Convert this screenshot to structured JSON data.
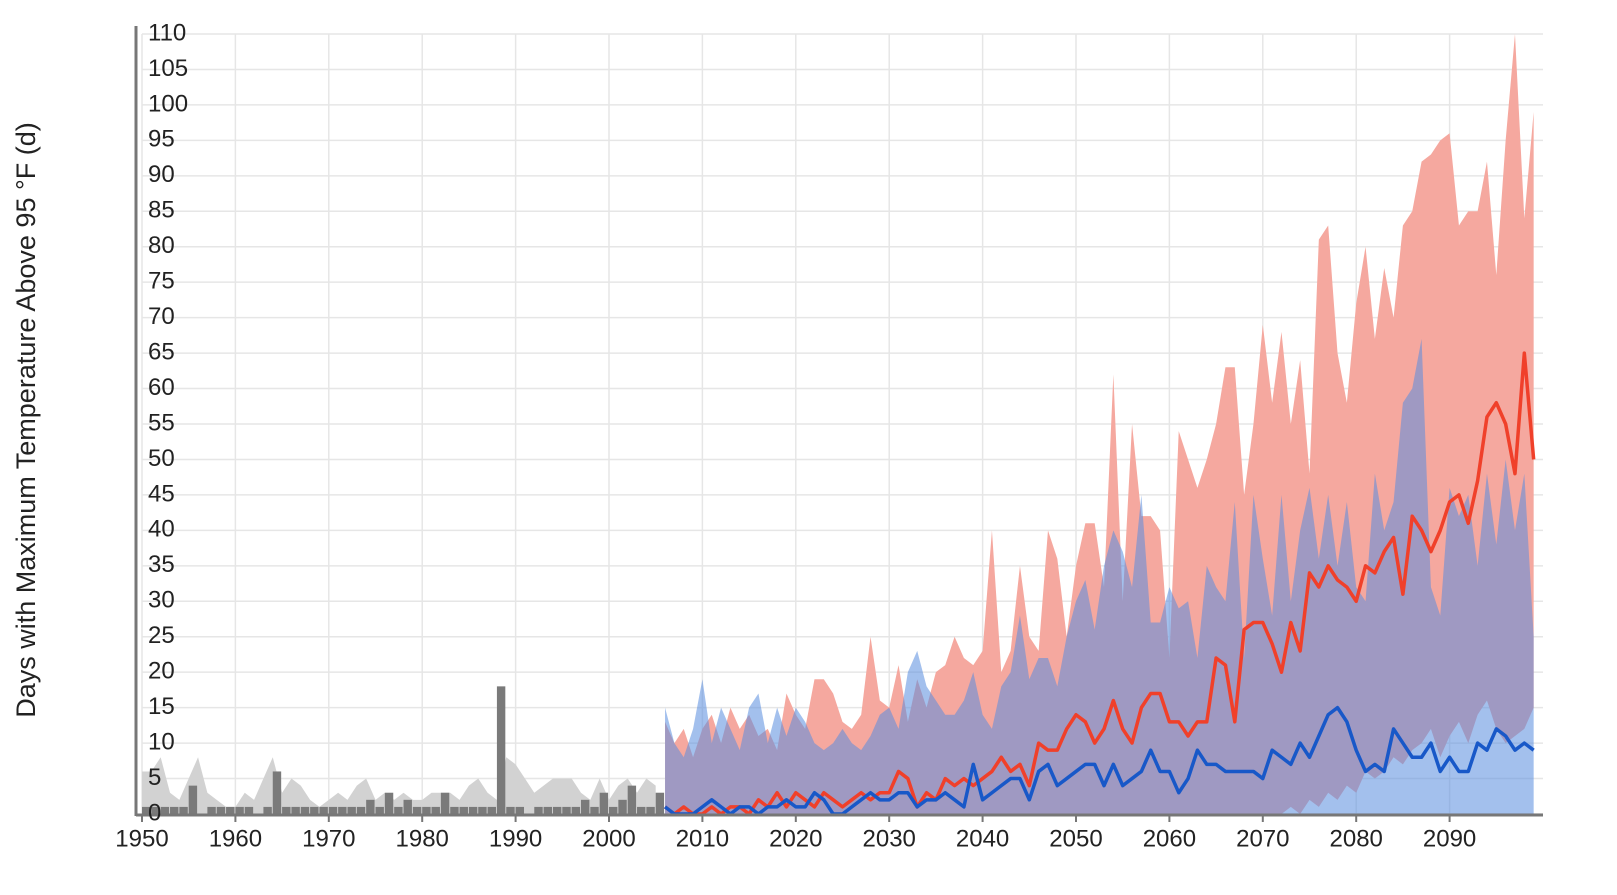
{
  "chart_data": {
    "type": "combo",
    "y_label": "Days with Maximum Temperature Above 95 °F (d)",
    "xlim": [
      1950,
      2100
    ],
    "ylim": [
      0,
      110
    ],
    "xticks": [
      1950,
      1960,
      1970,
      1980,
      1990,
      2000,
      2010,
      2020,
      2030,
      2040,
      2050,
      2060,
      2070,
      2080,
      2090
    ],
    "yticks": [
      0,
      5,
      10,
      15,
      20,
      25,
      30,
      35,
      40,
      45,
      50,
      55,
      60,
      65,
      70,
      75,
      80,
      85,
      90,
      95,
      100,
      105,
      110
    ],
    "grid": true,
    "series": [
      {
        "type": "area",
        "color": "#d2d2d2",
        "x": [
          1950,
          1951,
          1952,
          1953,
          1954,
          1955,
          1956,
          1957,
          1958,
          1959,
          1960,
          1961,
          1962,
          1963,
          1964,
          1965,
          1966,
          1967,
          1968,
          1969,
          1970,
          1971,
          1972,
          1973,
          1974,
          1975,
          1976,
          1977,
          1978,
          1979,
          1980,
          1981,
          1982,
          1983,
          1984,
          1985,
          1986,
          1987,
          1988,
          1989,
          1990,
          1991,
          1992,
          1993,
          1994,
          1995,
          1996,
          1997,
          1998,
          1999,
          2000,
          2001,
          2002,
          2003,
          2004,
          2005
        ],
        "values": [
          6,
          6,
          8,
          3,
          2,
          5,
          8,
          3,
          2,
          1,
          1,
          3,
          2,
          5,
          8,
          3,
          5,
          4,
          2,
          1,
          2,
          3,
          2,
          4,
          5,
          2,
          3,
          2,
          3,
          2,
          2,
          3,
          3,
          3,
          2,
          4,
          5,
          3,
          2,
          8,
          7,
          5,
          3,
          4,
          5,
          5,
          5,
          3,
          2,
          5,
          2,
          4,
          5,
          3,
          5,
          4
        ]
      },
      {
        "type": "bar",
        "color": "#7a7a7a",
        "x": [
          1950,
          1951,
          1952,
          1953,
          1954,
          1955,
          1956,
          1957,
          1958,
          1959,
          1960,
          1961,
          1962,
          1963,
          1964,
          1965,
          1966,
          1967,
          1968,
          1969,
          1970,
          1971,
          1972,
          1973,
          1974,
          1975,
          1976,
          1977,
          1978,
          1979,
          1980,
          1981,
          1982,
          1983,
          1984,
          1985,
          1986,
          1987,
          1988,
          1989,
          1990,
          1991,
          1992,
          1993,
          1994,
          1995,
          1996,
          1997,
          1998,
          1999,
          2000,
          2001,
          2002,
          2003,
          2004,
          2005
        ],
        "values": [
          1,
          1,
          1,
          1,
          1,
          4,
          0,
          1,
          1,
          1,
          1,
          1,
          0,
          1,
          6,
          1,
          1,
          1,
          1,
          1,
          1,
          1,
          1,
          1,
          2,
          1,
          3,
          1,
          2,
          1,
          1,
          1,
          3,
          1,
          1,
          1,
          1,
          1,
          18,
          1,
          1,
          0,
          1,
          1,
          1,
          1,
          1,
          2,
          1,
          3,
          1,
          2,
          4,
          1,
          1,
          3
        ]
      },
      {
        "type": "range",
        "color": "#f5a89f",
        "x": [
          2006,
          2007,
          2008,
          2009,
          2010,
          2011,
          2012,
          2013,
          2014,
          2015,
          2016,
          2017,
          2018,
          2019,
          2020,
          2021,
          2022,
          2023,
          2024,
          2025,
          2026,
          2027,
          2028,
          2029,
          2030,
          2031,
          2032,
          2033,
          2034,
          2035,
          2036,
          2037,
          2038,
          2039,
          2040,
          2041,
          2042,
          2043,
          2044,
          2045,
          2046,
          2047,
          2048,
          2049,
          2050,
          2051,
          2052,
          2053,
          2054,
          2055,
          2056,
          2057,
          2058,
          2059,
          2060,
          2061,
          2062,
          2063,
          2064,
          2065,
          2066,
          2067,
          2068,
          2069,
          2070,
          2071,
          2072,
          2073,
          2074,
          2075,
          2076,
          2077,
          2078,
          2079,
          2080,
          2081,
          2082,
          2083,
          2084,
          2085,
          2086,
          2087,
          2088,
          2089,
          2090,
          2091,
          2092,
          2093,
          2094,
          2095,
          2096,
          2097,
          2098,
          2099
        ],
        "low": [
          0,
          0,
          0,
          0,
          0,
          0,
          0,
          0,
          0,
          0,
          0,
          0,
          0,
          0,
          0,
          0,
          0,
          0,
          0,
          0,
          0,
          0,
          0,
          0,
          0,
          0,
          0,
          0,
          0,
          0,
          0,
          0,
          0,
          0,
          0,
          0,
          0,
          0,
          0,
          0,
          0,
          0,
          0,
          0,
          0,
          0,
          0,
          0,
          0,
          0,
          0,
          0,
          0,
          0,
          0,
          0,
          0,
          0,
          0,
          0,
          0,
          0,
          0,
          0,
          0,
          0,
          0,
          1,
          0,
          2,
          1,
          3,
          2,
          4,
          3,
          6,
          5,
          6,
          8,
          7,
          9,
          10,
          12,
          8,
          11,
          13,
          10,
          14,
          16,
          12,
          10,
          11,
          12,
          15
        ],
        "high": [
          13,
          10,
          12,
          8,
          12,
          14,
          10,
          15,
          12,
          14,
          11,
          12,
          9,
          17,
          14,
          12,
          19,
          19,
          17,
          13,
          12,
          14,
          25,
          16,
          15,
          21,
          13,
          19,
          15,
          20,
          21,
          25,
          22,
          21,
          23,
          40,
          20,
          23,
          35,
          25,
          23,
          40,
          36,
          25,
          35,
          41,
          41,
          32,
          62,
          30,
          55,
          42,
          42,
          40,
          22,
          54,
          50,
          46,
          50,
          55,
          63,
          63,
          45,
          55,
          69,
          58,
          68,
          55,
          64,
          48,
          81,
          83,
          65,
          58,
          72,
          80,
          67,
          77,
          70,
          83,
          85,
          92,
          93,
          95,
          96,
          83,
          85,
          85,
          92,
          76,
          95,
          110,
          84,
          99
        ]
      },
      {
        "type": "area",
        "color": "rgba(88,140,222,0.55)",
        "x": [
          2006,
          2007,
          2008,
          2009,
          2010,
          2011,
          2012,
          2013,
          2014,
          2015,
          2016,
          2017,
          2018,
          2019,
          2020,
          2021,
          2022,
          2023,
          2024,
          2025,
          2026,
          2027,
          2028,
          2029,
          2030,
          2031,
          2032,
          2033,
          2034,
          2035,
          2036,
          2037,
          2038,
          2039,
          2040,
          2041,
          2042,
          2043,
          2044,
          2045,
          2046,
          2047,
          2048,
          2049,
          2050,
          2051,
          2052,
          2053,
          2054,
          2055,
          2056,
          2057,
          2058,
          2059,
          2060,
          2061,
          2062,
          2063,
          2064,
          2065,
          2066,
          2067,
          2068,
          2069,
          2070,
          2071,
          2072,
          2073,
          2074,
          2075,
          2076,
          2077,
          2078,
          2079,
          2080,
          2081,
          2082,
          2083,
          2084,
          2085,
          2086,
          2087,
          2088,
          2089,
          2090,
          2091,
          2092,
          2093,
          2094,
          2095,
          2096,
          2097,
          2098,
          2099
        ],
        "values": [
          15,
          10,
          8,
          12,
          19,
          10,
          15,
          12,
          9,
          15,
          17,
          10,
          15,
          11,
          15,
          13,
          10,
          9,
          10,
          12,
          10,
          9,
          11,
          14,
          15,
          12,
          20,
          23,
          18,
          16,
          14,
          14,
          16,
          20,
          14,
          12,
          18,
          20,
          28,
          19,
          22,
          22,
          18,
          25,
          30,
          33,
          26,
          35,
          40,
          37,
          32,
          45,
          27,
          27,
          32,
          29,
          30,
          22,
          35,
          32,
          30,
          44,
          22,
          45,
          36,
          28,
          45,
          30,
          40,
          46,
          36,
          45,
          35,
          44,
          32,
          30,
          48,
          40,
          44,
          58,
          60,
          67,
          32,
          28,
          46,
          42,
          45,
          35,
          48,
          38,
          50,
          40,
          48,
          25
        ]
      },
      {
        "type": "line",
        "color": "#f0402a",
        "x": [
          2006,
          2007,
          2008,
          2009,
          2010,
          2011,
          2012,
          2013,
          2014,
          2015,
          2016,
          2017,
          2018,
          2019,
          2020,
          2021,
          2022,
          2023,
          2024,
          2025,
          2026,
          2027,
          2028,
          2029,
          2030,
          2031,
          2032,
          2033,
          2034,
          2035,
          2036,
          2037,
          2038,
          2039,
          2040,
          2041,
          2042,
          2043,
          2044,
          2045,
          2046,
          2047,
          2048,
          2049,
          2050,
          2051,
          2052,
          2053,
          2054,
          2055,
          2056,
          2057,
          2058,
          2059,
          2060,
          2061,
          2062,
          2063,
          2064,
          2065,
          2066,
          2067,
          2068,
          2069,
          2070,
          2071,
          2072,
          2073,
          2074,
          2075,
          2076,
          2077,
          2078,
          2079,
          2080,
          2081,
          2082,
          2083,
          2084,
          2085,
          2086,
          2087,
          2088,
          2089,
          2090,
          2091,
          2092,
          2093,
          2094,
          2095,
          2096,
          2097,
          2098,
          2099
        ],
        "values": [
          1,
          0,
          1,
          0,
          0,
          1,
          0,
          1,
          1,
          0,
          2,
          1,
          3,
          1,
          3,
          2,
          1,
          3,
          2,
          1,
          2,
          3,
          2,
          3,
          3,
          6,
          5,
          1,
          3,
          2,
          5,
          4,
          5,
          4,
          5,
          6,
          8,
          6,
          7,
          4,
          10,
          9,
          9,
          12,
          14,
          13,
          10,
          12,
          16,
          12,
          10,
          15,
          17,
          17,
          13,
          13,
          11,
          13,
          13,
          22,
          21,
          13,
          26,
          27,
          27,
          24,
          20,
          27,
          23,
          34,
          32,
          35,
          33,
          32,
          30,
          35,
          34,
          37,
          39,
          31,
          42,
          40,
          37,
          40,
          44,
          45,
          41,
          47,
          56,
          58,
          55,
          48,
          65,
          50
        ]
      },
      {
        "type": "line",
        "color": "#1858c8",
        "x": [
          2006,
          2007,
          2008,
          2009,
          2010,
          2011,
          2012,
          2013,
          2014,
          2015,
          2016,
          2017,
          2018,
          2019,
          2020,
          2021,
          2022,
          2023,
          2024,
          2025,
          2026,
          2027,
          2028,
          2029,
          2030,
          2031,
          2032,
          2033,
          2034,
          2035,
          2036,
          2037,
          2038,
          2039,
          2040,
          2041,
          2042,
          2043,
          2044,
          2045,
          2046,
          2047,
          2048,
          2049,
          2050,
          2051,
          2052,
          2053,
          2054,
          2055,
          2056,
          2057,
          2058,
          2059,
          2060,
          2061,
          2062,
          2063,
          2064,
          2065,
          2066,
          2067,
          2068,
          2069,
          2070,
          2071,
          2072,
          2073,
          2074,
          2075,
          2076,
          2077,
          2078,
          2079,
          2080,
          2081,
          2082,
          2083,
          2084,
          2085,
          2086,
          2087,
          2088,
          2089,
          2090,
          2091,
          2092,
          2093,
          2094,
          2095,
          2096,
          2097,
          2098,
          2099
        ],
        "values": [
          1,
          0,
          0,
          0,
          1,
          2,
          1,
          0,
          1,
          1,
          0,
          1,
          1,
          2,
          1,
          1,
          3,
          2,
          0,
          0,
          1,
          2,
          3,
          2,
          2,
          3,
          3,
          1,
          2,
          2,
          3,
          2,
          1,
          7,
          2,
          3,
          4,
          5,
          5,
          2,
          6,
          7,
          4,
          5,
          6,
          7,
          7,
          4,
          7,
          4,
          5,
          6,
          9,
          6,
          6,
          3,
          5,
          9,
          7,
          7,
          6,
          6,
          6,
          6,
          5,
          9,
          8,
          7,
          10,
          8,
          11,
          14,
          15,
          13,
          9,
          6,
          7,
          6,
          12,
          10,
          8,
          8,
          10,
          6,
          8,
          6,
          6,
          10,
          9,
          12,
          11,
          9,
          10,
          9
        ]
      }
    ]
  }
}
